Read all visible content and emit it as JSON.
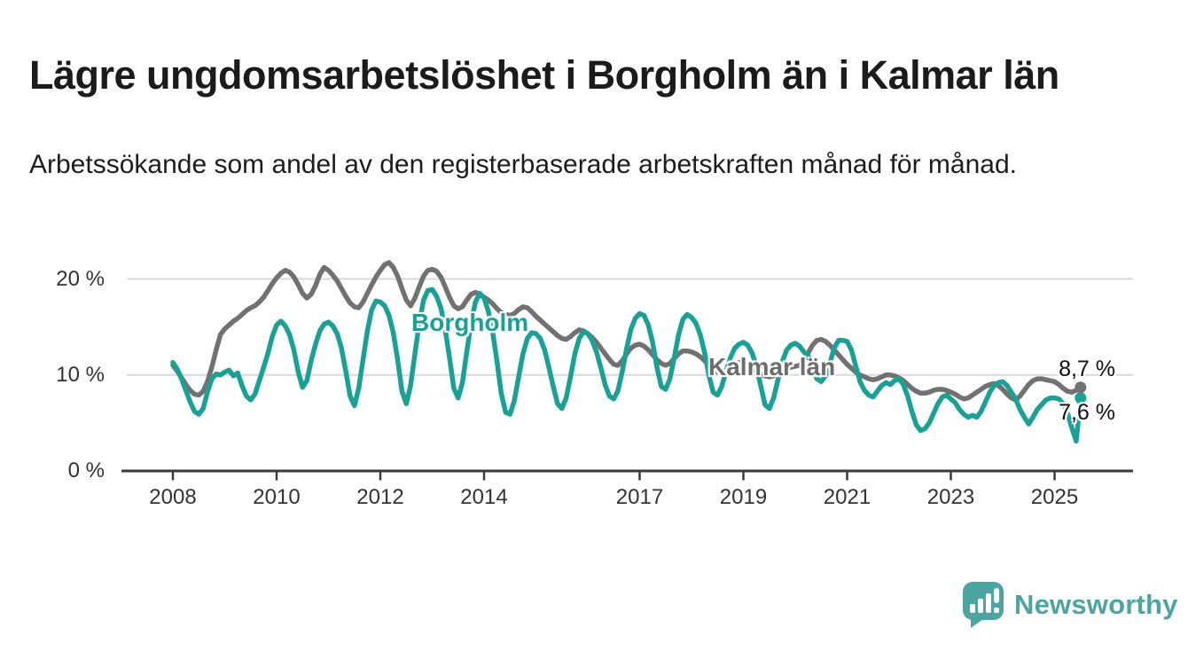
{
  "header": {
    "title": "Lägre ungdomsarbetslöshet i Borgholm än i Kalmar län",
    "subtitle": "Arbetssökande som andel av den registerbaserade arbetskraften månad för månad."
  },
  "chart": {
    "y_ticks": [
      "20 %",
      "10 %",
      "0 %"
    ],
    "x_ticks": [
      "2008",
      "2010",
      "2012",
      "2014",
      "2017",
      "2019",
      "2021",
      "2023",
      "2025"
    ],
    "series_labels": {
      "borgholm": "Borgholm",
      "kalmar": "Kalmar län"
    },
    "end_labels": {
      "kalmar": "8,7 %",
      "borgholm": "7,6 %"
    },
    "colors": {
      "borgholm": "#18a296",
      "kalmar": "#717171",
      "gridline": "#d9d9d9",
      "axis": "#3b3b3b",
      "brand_teal": "#4da5a1"
    }
  },
  "chart_data": {
    "type": "line",
    "title": "Lägre ungdomsarbetslöshet i Borgholm än i Kalmar län",
    "subtitle": "Arbetssökande som andel av den registerbaserade arbetskraften månad för månad.",
    "unit": "%",
    "frequency": "monthly",
    "x_start": "2008-01",
    "x_end": "2025-07",
    "ylim": [
      0,
      23
    ],
    "y_gridlines": [
      10,
      20
    ],
    "x_tick_years": [
      2008,
      2010,
      2012,
      2014,
      2017,
      2019,
      2021,
      2023,
      2025
    ],
    "legend_position": "inline-labels",
    "grid": true,
    "series": [
      {
        "name": "Kalmar län",
        "color": "#717171",
        "last_value": 8.7,
        "last_value_label": "8,7 %",
        "values": [
          11.0,
          10.4,
          9.7,
          9.0,
          8.4,
          8.0,
          7.9,
          8.3,
          9.3,
          10.8,
          12.6,
          14.2,
          14.8,
          15.2,
          15.6,
          15.9,
          16.3,
          16.7,
          17.0,
          17.2,
          17.6,
          18.1,
          18.8,
          19.5,
          20.1,
          20.6,
          20.9,
          20.7,
          20.2,
          19.4,
          18.5,
          18.0,
          18.4,
          19.3,
          20.5,
          21.2,
          20.9,
          20.4,
          19.8,
          19.0,
          18.2,
          17.5,
          17.1,
          17.0,
          17.6,
          18.5,
          19.4,
          20.2,
          20.9,
          21.5,
          21.7,
          21.2,
          20.3,
          19.0,
          17.8,
          17.2,
          18.0,
          19.2,
          20.3,
          20.9,
          21.0,
          20.8,
          20.2,
          19.2,
          18.1,
          17.2,
          16.9,
          17.1,
          17.8,
          18.4,
          18.6,
          18.4,
          18.1,
          17.8,
          17.4,
          16.9,
          16.5,
          16.3,
          16.2,
          16.4,
          16.8,
          17.1,
          17.0,
          16.6,
          16.1,
          15.7,
          15.3,
          14.9,
          14.5,
          14.1,
          13.8,
          13.7,
          14.0,
          14.4,
          14.7,
          14.6,
          14.3,
          13.9,
          13.4,
          12.8,
          12.2,
          11.6,
          11.1,
          11.0,
          11.5,
          12.2,
          12.8,
          13.1,
          13.2,
          13.0,
          12.6,
          12.1,
          11.6,
          11.2,
          11.0,
          11.2,
          11.7,
          12.2,
          12.5,
          12.5,
          12.4,
          12.2,
          11.9,
          11.5,
          11.0,
          10.6,
          10.3,
          10.2,
          10.5,
          10.9,
          11.2,
          11.3,
          11.2,
          11.0,
          10.7,
          10.4,
          10.1,
          9.9,
          9.8,
          9.9,
          10.2,
          10.5,
          10.7,
          10.8,
          10.9,
          11.0,
          11.5,
          12.3,
          13.1,
          13.6,
          13.7,
          13.5,
          13.1,
          12.6,
          12.1,
          11.6,
          11.1,
          10.7,
          10.3,
          10.0,
          9.8,
          9.6,
          9.5,
          9.6,
          9.8,
          10.0,
          10.0,
          9.9,
          9.7,
          9.4,
          9.0,
          8.6,
          8.3,
          8.1,
          8.1,
          8.2,
          8.4,
          8.5,
          8.5,
          8.4,
          8.2,
          8.0,
          7.7,
          7.5,
          7.6,
          7.9,
          8.2,
          8.5,
          8.8,
          9.0,
          9.1,
          8.9,
          8.5,
          8.0,
          7.6,
          7.4,
          7.8,
          8.4,
          9.0,
          9.4,
          9.6,
          9.6,
          9.5,
          9.4,
          9.3,
          9.0,
          8.6,
          8.3,
          8.2,
          8.4,
          8.7
        ]
      },
      {
        "name": "Borgholm",
        "color": "#18a296",
        "last_value": 7.6,
        "last_value_label": "7,6 %",
        "values": [
          11.3,
          10.6,
          9.6,
          8.4,
          7.2,
          6.2,
          5.9,
          6.5,
          8.2,
          9.6,
          10.1,
          10.0,
          10.3,
          10.5,
          9.9,
          10.2,
          8.9,
          7.8,
          7.4,
          8.0,
          9.4,
          10.8,
          12.3,
          14.0,
          15.2,
          15.6,
          15.1,
          14.2,
          12.6,
          10.3,
          8.7,
          9.4,
          11.5,
          13.2,
          14.6,
          15.3,
          15.5,
          15.1,
          14.3,
          12.8,
          10.4,
          7.8,
          6.8,
          8.6,
          11.6,
          14.6,
          16.8,
          17.7,
          17.6,
          17.2,
          16.2,
          14.4,
          11.6,
          8.3,
          7.0,
          8.9,
          12.2,
          15.4,
          17.8,
          18.8,
          18.9,
          18.2,
          17.0,
          14.8,
          11.8,
          8.6,
          7.6,
          9.2,
          12.4,
          15.5,
          17.6,
          18.5,
          18.0,
          16.6,
          14.4,
          11.4,
          8.0,
          6.1,
          5.9,
          7.3,
          9.8,
          12.2,
          13.8,
          14.4,
          14.3,
          13.8,
          12.6,
          10.8,
          8.8,
          7.0,
          6.5,
          7.6,
          9.8,
          12.2,
          13.8,
          14.5,
          14.3,
          13.6,
          12.4,
          10.8,
          9.0,
          7.8,
          7.5,
          8.4,
          10.4,
          12.8,
          14.8,
          15.9,
          16.4,
          16.2,
          15.2,
          13.4,
          10.8,
          8.8,
          8.5,
          9.6,
          11.8,
          14.2,
          15.8,
          16.3,
          16.0,
          15.4,
          14.2,
          12.4,
          10.0,
          8.2,
          7.9,
          8.8,
          10.4,
          11.8,
          12.8,
          13.2,
          13.4,
          13.1,
          12.3,
          10.9,
          8.9,
          6.9,
          6.5,
          7.6,
          9.5,
          11.4,
          12.6,
          13.1,
          13.3,
          13.0,
          12.4,
          12.0,
          10.8,
          9.6,
          9.3,
          9.9,
          11.2,
          12.8,
          13.6,
          13.6,
          13.5,
          12.6,
          10.9,
          9.3,
          8.4,
          7.9,
          7.7,
          8.3,
          8.9,
          9.2,
          9.0,
          9.4,
          9.6,
          9.0,
          7.8,
          6.2,
          4.8,
          4.2,
          4.4,
          5.0,
          6.0,
          7.0,
          7.7,
          7.9,
          7.5,
          7.1,
          6.4,
          5.9,
          5.6,
          5.8,
          5.6,
          6.2,
          7.2,
          8.2,
          8.9,
          9.2,
          9.3,
          8.9,
          8.2,
          7.5,
          6.4,
          5.6,
          4.9,
          5.6,
          6.4,
          6.9,
          7.4,
          7.6,
          7.6,
          7.5,
          7.0,
          6.0,
          4.5,
          3.1,
          7.6
        ]
      }
    ]
  },
  "footer": {
    "brand": "Newsworthy"
  }
}
